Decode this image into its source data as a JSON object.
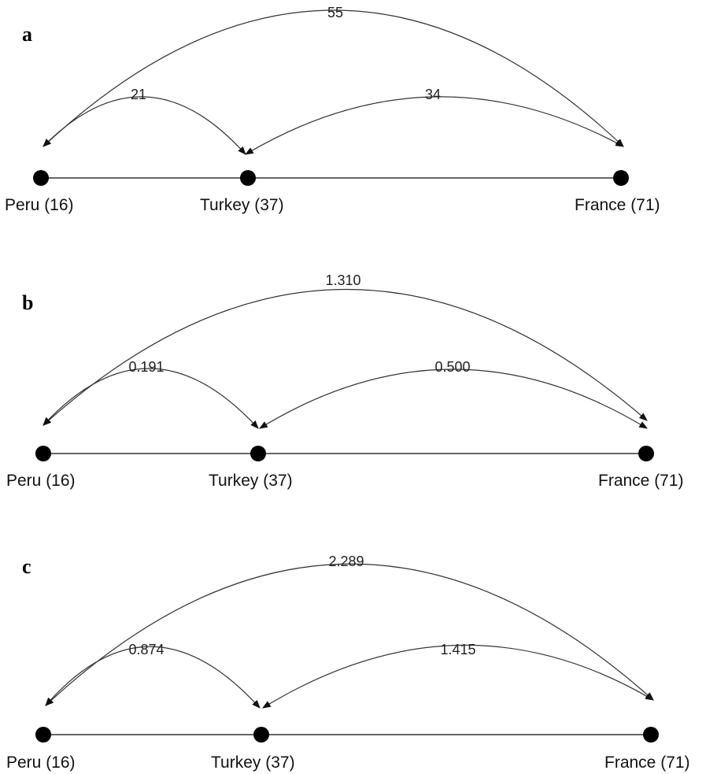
{
  "panels": [
    {
      "letter": "a",
      "nodes": [
        {
          "id": "peru",
          "label": "Peru (16)"
        },
        {
          "id": "turkey",
          "label": "Turkey (37)"
        },
        {
          "id": "france",
          "label": "France (71)"
        }
      ],
      "edges": [
        {
          "from": "peru",
          "to": "turkey",
          "value": "21"
        },
        {
          "from": "turkey",
          "to": "france",
          "value": "34"
        },
        {
          "from": "peru",
          "to": "france",
          "value": "55"
        }
      ]
    },
    {
      "letter": "b",
      "nodes": [
        {
          "id": "peru",
          "label": "Peru (16)"
        },
        {
          "id": "turkey",
          "label": "Turkey (37)"
        },
        {
          "id": "france",
          "label": "France (71)"
        }
      ],
      "edges": [
        {
          "from": "peru",
          "to": "turkey",
          "value": "0.191"
        },
        {
          "from": "turkey",
          "to": "france",
          "value": "0.500"
        },
        {
          "from": "peru",
          "to": "france",
          "value": "1.310"
        }
      ]
    },
    {
      "letter": "c",
      "nodes": [
        {
          "id": "peru",
          "label": "Peru (16)"
        },
        {
          "id": "turkey",
          "label": "Turkey (37)"
        },
        {
          "id": "france",
          "label": "France (71)"
        }
      ],
      "edges": [
        {
          "from": "peru",
          "to": "turkey",
          "value": "0.874"
        },
        {
          "from": "turkey",
          "to": "france",
          "value": "1.415"
        },
        {
          "from": "peru",
          "to": "france",
          "value": "2.289"
        }
      ]
    }
  ]
}
